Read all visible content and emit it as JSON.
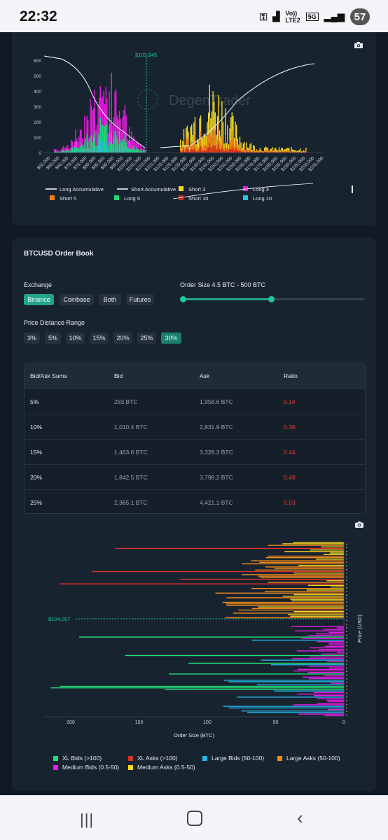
{
  "status_bar": {
    "time": "22:32",
    "network_top": "Vo))",
    "network_bottom": "LTE2",
    "gen": "5G",
    "battery": "57"
  },
  "colors": {
    "long_accumulative": "#ffffff",
    "short_accumulative": "#ffffff",
    "short3": "#f4d81f",
    "long3": "#e81ce0",
    "short5": "#f07c18",
    "long5": "#22d77a",
    "short10": "#d72a20",
    "long10": "#21c7d6",
    "bid_xl": "#22e07a",
    "ask_xl": "#d9302a",
    "bid_large": "#23b6e8",
    "ask_large": "#f08a1a",
    "bid_medium": "#e81ce8",
    "ask_medium": "#f6d81e",
    "accent": "#22a58c"
  },
  "liq_chart": {
    "watermark": "DegenTrader",
    "price_marker": "$103,845",
    "y_ticks": [
      "600",
      "500",
      "400",
      "300",
      "200",
      "100",
      "0"
    ],
    "x_ticks": [
      "$55,000",
      "$60,000",
      "$65,000",
      "$70,000",
      "$75,000",
      "$80,000",
      "$85,000",
      "$90,000",
      "$95,000",
      "$100,000",
      "$105,000",
      "$110,000",
      "$115,000",
      "$120,000",
      "$125,000",
      "$130,000",
      "$135,000",
      "$140,000",
      "$145,000",
      "$150,000",
      "$155,000",
      "$160,000",
      "$165,000",
      "$170,000",
      "$175,000",
      "$180,000",
      "$185,000",
      "$190,000",
      "$195,000",
      "$200,000",
      "$205,000"
    ],
    "legend": [
      "Long Accumulative",
      "Short Accumulative",
      "Short 3",
      "Long 3",
      "Short 5",
      "Long 5",
      "Short 10",
      "Long 10"
    ]
  },
  "order_book": {
    "title": "BTCUSD Order Book",
    "exchange_label": "Exchange",
    "exchanges": [
      "Binance",
      "Coinbase",
      "Both",
      "Futures"
    ],
    "selected_exchange": "Binance",
    "order_size_label": "Order Size 4.5 BTC - 500 BTC",
    "slider_min": 4.5,
    "slider_max": 500,
    "price_range_label": "Price Distance Range",
    "ranges": [
      "3%",
      "5%",
      "10%",
      "15%",
      "20%",
      "25%",
      "30%"
    ],
    "selected_range": "30%",
    "table": {
      "headers": [
        "Bid/Ask Sums",
        "Bid",
        "Ask",
        "Ratio"
      ],
      "rows": [
        [
          "5%",
          "283 BTC",
          "1,958.6 BTC",
          "0.14"
        ],
        [
          "10%",
          "1,010.4 BTC",
          "2,831.9 BTC",
          "0.36"
        ],
        [
          "15%",
          "1,463.6 BTC",
          "3,328.3 BTC",
          "0.44"
        ],
        [
          "20%",
          "1,842.5 BTC",
          "3,798.2 BTC",
          "0.49"
        ],
        [
          "25%",
          "2,365.1 BTC",
          "4,421.1 BTC",
          "0.53"
        ]
      ]
    }
  },
  "depth_chart": {
    "price_marker": "$104,057",
    "y_label": "Price (USD)",
    "x_label": "Order Size (BTC)",
    "x_ticks": [
      "200",
      "150",
      "100",
      "50",
      "0"
    ],
    "legend": [
      "XL Bids (>100)",
      "XL Asks (>100)",
      "Large Bids (50-100)",
      "Large Asks (50-100)",
      "Medium Bids (0.5-50)",
      "Medium Asks (0.5-50)"
    ]
  }
}
